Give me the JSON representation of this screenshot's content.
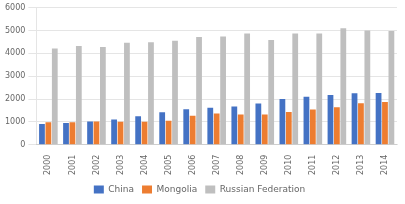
{
  "chart_data": {
    "type": "bar",
    "categories": [
      "2000",
      "2001",
      "2002",
      "2003",
      "2004",
      "2005",
      "2006",
      "2007",
      "2008",
      "2009",
      "2010",
      "2011",
      "2012",
      "2013",
      "2014"
    ],
    "series": [
      {
        "name": "China",
        "color": "#4472C4",
        "values": [
          900,
          950,
          1020,
          1100,
          1250,
          1420,
          1550,
          1620,
          1670,
          1800,
          2000,
          2100,
          2180,
          2250,
          2260
        ]
      },
      {
        "name": "Mongolia",
        "color": "#ED7D31",
        "values": [
          980,
          980,
          1020,
          1000,
          1000,
          1050,
          1270,
          1360,
          1320,
          1320,
          1430,
          1540,
          1640,
          1820,
          1870
        ]
      },
      {
        "name": "Russian Federation",
        "color": "#BFBFBF",
        "values": [
          4220,
          4320,
          4280,
          4470,
          4490,
          4560,
          4720,
          4740,
          4870,
          4590,
          4870,
          4870,
          5100,
          5000,
          4980
        ]
      }
    ],
    "ylim": [
      0,
      6000
    ],
    "yticks": [
      0,
      1000,
      2000,
      3000,
      4000,
      5000,
      6000
    ],
    "grid": true,
    "legend": "bottom"
  }
}
